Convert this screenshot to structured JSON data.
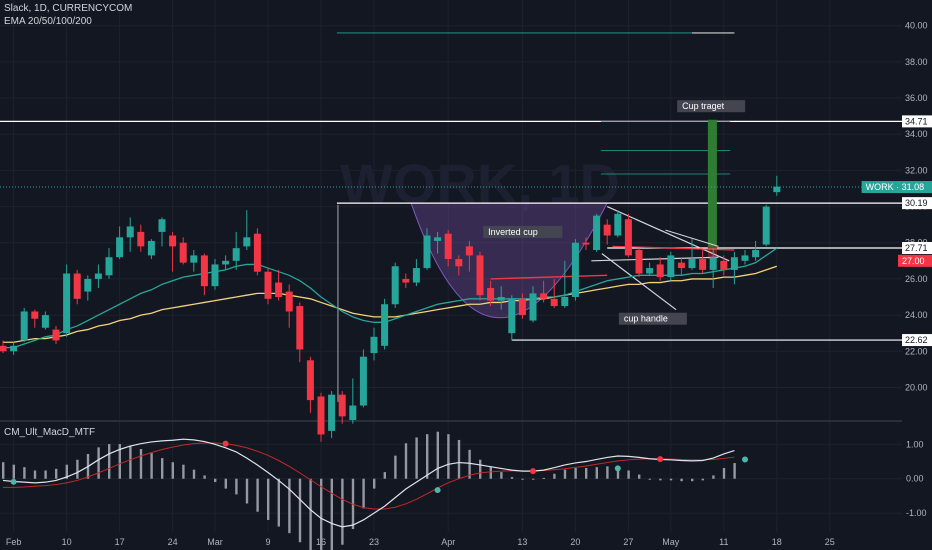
{
  "header": {
    "symbol_line": "Slack, 1D, CURRENCYCOM",
    "indicator_line": "EMA 20/50/100/200"
  },
  "watermark": "WORK, 1D",
  "indicator": {
    "name": "CM_Ult_MacD_MTF",
    "ticks": [
      "1.00",
      "0.00",
      "-1.00"
    ],
    "tick_values": [
      1,
      0,
      -1
    ],
    "ylim": [
      -1.55,
      1.65
    ],
    "macd": [
      -0.05,
      -0.08,
      -0.1,
      -0.12,
      -0.1,
      -0.05,
      0.05,
      0.18,
      0.35,
      0.55,
      0.72,
      0.85,
      0.95,
      1.02,
      1.07,
      1.1,
      1.12,
      1.15,
      1.13,
      1.08,
      1.0,
      0.9,
      0.78,
      0.6,
      0.4,
      0.18,
      -0.05,
      -0.3,
      -0.6,
      -0.9,
      -1.15,
      -1.3,
      -1.4,
      -1.35,
      -1.2,
      -1.0,
      -0.8,
      -0.55,
      -0.3,
      -0.1,
      0.1,
      0.3,
      0.42,
      0.47,
      0.45,
      0.4,
      0.35,
      0.3,
      0.25,
      0.22,
      0.22,
      0.25,
      0.32,
      0.4,
      0.46,
      0.5,
      0.56,
      0.62,
      0.66,
      0.65,
      0.62,
      0.58,
      0.56,
      0.55,
      0.53,
      0.52,
      0.53,
      0.6,
      0.72,
      0.82
    ],
    "signal": [
      -0.25,
      -0.25,
      -0.24,
      -0.22,
      -0.2,
      -0.17,
      -0.12,
      -0.05,
      0.05,
      0.17,
      0.3,
      0.43,
      0.55,
      0.66,
      0.76,
      0.85,
      0.92,
      0.98,
      1.02,
      1.04,
      1.04,
      1.02,
      0.97,
      0.9,
      0.8,
      0.68,
      0.53,
      0.36,
      0.17,
      -0.03,
      -0.23,
      -0.42,
      -0.6,
      -0.74,
      -0.84,
      -0.88,
      -0.88,
      -0.83,
      -0.73,
      -0.6,
      -0.44,
      -0.27,
      -0.12,
      0.0,
      0.1,
      0.17,
      0.2,
      0.22,
      0.23,
      0.23,
      0.23,
      0.24,
      0.26,
      0.29,
      0.33,
      0.37,
      0.42,
      0.47,
      0.52,
      0.55,
      0.57,
      0.58,
      0.58,
      0.57,
      0.56,
      0.55,
      0.55,
      0.56,
      0.59,
      0.63
    ],
    "crosses": [
      {
        "i": 1,
        "v": -0.09,
        "color": "#4db6ac"
      },
      {
        "i": 21,
        "v": 1.02,
        "color": "#f23645"
      },
      {
        "i": 41,
        "v": -0.33,
        "color": "#4db6ac"
      },
      {
        "i": 50,
        "v": 0.22,
        "color": "#f23645"
      },
      {
        "i": 58,
        "v": 0.3,
        "color": "#4db6ac"
      },
      {
        "i": 62,
        "v": 0.57,
        "color": "#f23645"
      },
      {
        "i": 70,
        "v": 0.56,
        "color": "#4db6ac"
      }
    ]
  },
  "chart_data": {
    "type": "candlestick",
    "title": "Slack, 1D, CURRENCYCOM",
    "ylim": [
      18.2,
      41.2
    ],
    "yticks": [
      20,
      22,
      24,
      26,
      28,
      30,
      32,
      34,
      36,
      38,
      40
    ],
    "ytick_labels": [
      "20.00",
      "22.00",
      "24.00",
      "26.00",
      "28.00",
      "30.00",
      "32.00",
      "34.00",
      "36.00",
      "38.00",
      "40.00"
    ],
    "xticks": [
      {
        "label": "Feb",
        "i": 1
      },
      {
        "label": "10",
        "i": 6
      },
      {
        "label": "17",
        "i": 11
      },
      {
        "label": "24",
        "i": 16
      },
      {
        "label": "Mar",
        "i": 20
      },
      {
        "label": "9",
        "i": 25
      },
      {
        "label": "16",
        "i": 30
      },
      {
        "label": "23",
        "i": 35
      },
      {
        "label": "Apr",
        "i": 42
      },
      {
        "label": "13",
        "i": 49
      },
      {
        "label": "20",
        "i": 54
      },
      {
        "label": "27",
        "i": 59
      },
      {
        "label": "May",
        "i": 63
      },
      {
        "label": "11",
        "i": 68
      },
      {
        "label": "18",
        "i": 73
      },
      {
        "label": "25",
        "i": 78
      }
    ],
    "candles": [
      [
        22.3,
        22.0,
        22.6,
        21.9
      ],
      [
        22.0,
        22.3,
        22.5,
        21.8
      ],
      [
        22.6,
        24.2,
        24.4,
        22.5
      ],
      [
        24.2,
        23.8,
        24.3,
        23.3
      ],
      [
        23.3,
        24.0,
        24.2,
        23.2
      ],
      [
        23.2,
        22.6,
        23.4,
        22.4
      ],
      [
        23.0,
        26.3,
        26.8,
        22.8
      ],
      [
        26.3,
        24.9,
        26.5,
        24.6
      ],
      [
        25.3,
        26.0,
        26.2,
        24.8
      ],
      [
        26.0,
        26.3,
        26.8,
        25.5
      ],
      [
        26.2,
        27.2,
        27.7,
        26.0
      ],
      [
        27.2,
        28.3,
        28.9,
        27.1
      ],
      [
        28.3,
        28.9,
        29.4,
        27.5
      ],
      [
        28.6,
        27.8,
        29.0,
        27.5
      ],
      [
        27.3,
        28.1,
        28.2,
        27.1
      ],
      [
        28.6,
        29.3,
        29.4,
        27.8
      ],
      [
        28.4,
        27.8,
        28.6,
        26.4
      ],
      [
        28.0,
        26.9,
        28.3,
        26.8
      ],
      [
        26.9,
        27.3,
        27.6,
        26.4
      ],
      [
        27.3,
        25.6,
        27.4,
        25.1
      ],
      [
        25.6,
        26.8,
        27.1,
        25.4
      ],
      [
        26.8,
        27.0,
        27.3,
        26.5
      ],
      [
        27.0,
        27.7,
        28.6,
        26.5
      ],
      [
        27.8,
        28.3,
        29.8,
        27.6
      ],
      [
        28.5,
        26.4,
        28.8,
        26.2
      ],
      [
        26.4,
        24.9,
        26.6,
        24.6
      ],
      [
        25.8,
        25.0,
        26.5,
        24.8
      ],
      [
        25.3,
        24.2,
        25.7,
        23.3
      ],
      [
        24.5,
        22.1,
        24.7,
        21.4
      ],
      [
        21.5,
        19.3,
        21.7,
        18.6
      ],
      [
        19.5,
        17.4,
        19.7,
        17.0
      ],
      [
        17.6,
        19.6,
        19.8,
        17.2
      ],
      [
        19.6,
        18.4,
        19.8,
        18.0
      ],
      [
        18.2,
        19.0,
        20.5,
        18.0
      ],
      [
        19.0,
        21.7,
        22.1,
        18.9
      ],
      [
        21.9,
        22.8,
        23.3,
        21.5
      ],
      [
        22.3,
        24.6,
        24.9,
        22.1
      ],
      [
        24.6,
        26.7,
        26.9,
        24.4
      ],
      [
        26.0,
        25.8,
        26.3,
        25.5
      ],
      [
        25.8,
        26.6,
        27.1,
        25.6
      ],
      [
        26.6,
        28.4,
        28.8,
        26.5
      ],
      [
        28.1,
        28.3,
        28.6,
        27.4
      ],
      [
        28.5,
        27.1,
        28.7,
        26.7
      ],
      [
        27.1,
        26.7,
        27.3,
        26.2
      ],
      [
        27.8,
        27.3,
        28.1,
        26.4
      ],
      [
        27.3,
        25.1,
        27.5,
        24.8
      ],
      [
        25.5,
        24.8,
        25.9,
        24.5
      ],
      [
        24.8,
        25.0,
        25.6,
        24.3
      ],
      [
        23.0,
        24.9,
        25.1,
        22.6
      ],
      [
        24.9,
        24.0,
        25.2,
        23.8
      ],
      [
        23.7,
        25.2,
        25.6,
        23.6
      ],
      [
        25.2,
        24.9,
        25.9,
        24.7
      ],
      [
        24.9,
        24.5,
        26.0,
        24.4
      ],
      [
        24.5,
        25.0,
        27.0,
        24.4
      ],
      [
        25.0,
        28.0,
        28.2,
        24.8
      ],
      [
        28.0,
        27.9,
        28.3,
        27.6
      ],
      [
        27.6,
        29.5,
        29.6,
        27.5
      ],
      [
        29.0,
        28.4,
        29.3,
        27.9
      ],
      [
        28.4,
        29.6,
        29.8,
        28.3
      ],
      [
        29.3,
        27.3,
        29.6,
        27.2
      ],
      [
        27.6,
        26.3,
        27.7,
        26.1
      ],
      [
        26.3,
        26.6,
        26.9,
        26.2
      ],
      [
        26.8,
        26.1,
        27.2,
        25.9
      ],
      [
        26.1,
        27.3,
        27.5,
        25.9
      ],
      [
        26.9,
        26.6,
        27.2,
        26.2
      ],
      [
        26.6,
        27.1,
        28.2,
        26.5
      ],
      [
        27.1,
        26.5,
        27.6,
        26.3
      ],
      [
        26.5,
        27.2,
        27.7,
        25.5
      ],
      [
        27.0,
        26.5,
        27.3,
        26.2
      ],
      [
        26.5,
        27.2,
        27.5,
        25.7
      ],
      [
        27.0,
        27.3,
        27.6,
        26.8
      ],
      [
        27.2,
        27.6,
        28.1,
        27.0
      ],
      [
        27.9,
        30.0,
        30.1,
        27.8
      ],
      [
        30.8,
        31.1,
        31.7,
        30.6
      ]
    ],
    "ema20": [
      22.2,
      22.2,
      22.4,
      22.6,
      22.8,
      22.9,
      23.2,
      23.4,
      23.7,
      24.0,
      24.3,
      24.6,
      24.9,
      25.2,
      25.4,
      25.7,
      25.9,
      26.1,
      26.2,
      26.3,
      26.4,
      26.5,
      26.7,
      26.8,
      26.8,
      26.6,
      26.4,
      26.2,
      25.9,
      25.5,
      25.0,
      24.6,
      24.2,
      23.9,
      23.7,
      23.6,
      23.6,
      23.8,
      24.0,
      24.2,
      24.4,
      24.6,
      24.7,
      24.8,
      24.9,
      24.9,
      24.9,
      24.9,
      24.9,
      24.9,
      24.9,
      25.0,
      25.0,
      25.1,
      25.3,
      25.5,
      25.7,
      25.9,
      26.0,
      26.1,
      26.2,
      26.2,
      26.2,
      26.2,
      26.2,
      26.3,
      26.3,
      26.4,
      26.5,
      26.6,
      26.7,
      26.9,
      27.3,
      27.7
    ],
    "ema50": [
      22.5,
      22.5,
      22.6,
      22.7,
      22.7,
      22.8,
      22.9,
      23.1,
      23.2,
      23.4,
      23.5,
      23.7,
      23.8,
      24.0,
      24.1,
      24.3,
      24.4,
      24.5,
      24.6,
      24.7,
      24.8,
      24.9,
      25.0,
      25.1,
      25.2,
      25.2,
      25.2,
      25.1,
      25.0,
      24.9,
      24.7,
      24.5,
      24.3,
      24.1,
      24.0,
      23.9,
      23.9,
      23.9,
      24.0,
      24.1,
      24.2,
      24.3,
      24.4,
      24.5,
      24.6,
      24.6,
      24.7,
      24.7,
      24.8,
      24.8,
      24.9,
      24.9,
      25.0,
      25.1,
      25.2,
      25.3,
      25.4,
      25.5,
      25.6,
      25.7,
      25.7,
      25.8,
      25.8,
      25.9,
      25.9,
      26.0,
      26.0,
      26.0,
      26.1,
      26.1,
      26.2,
      26.3,
      26.5,
      26.7
    ],
    "horizontal_levels": [
      {
        "value": 34.71,
        "label": "34.71"
      },
      {
        "value": 30.19,
        "label": "30.19"
      },
      {
        "value": 27.71,
        "label": "27.71"
      },
      {
        "value": 22.62,
        "label": "22.62"
      }
    ],
    "price_tags": [
      {
        "value": 31.08,
        "label": "WORK · 31.08",
        "color": "#26a69a"
      },
      {
        "value": 27.0,
        "label": "27.00",
        "color": "#f23645"
      }
    ],
    "annotations": [
      {
        "text": "Cup traget",
        "i": 63.6,
        "v": 35.55
      },
      {
        "text": "Inverted cup",
        "i": 45.3,
        "v": 28.6
      },
      {
        "text": "cup handle",
        "i": 58.1,
        "v": 23.8
      }
    ]
  }
}
